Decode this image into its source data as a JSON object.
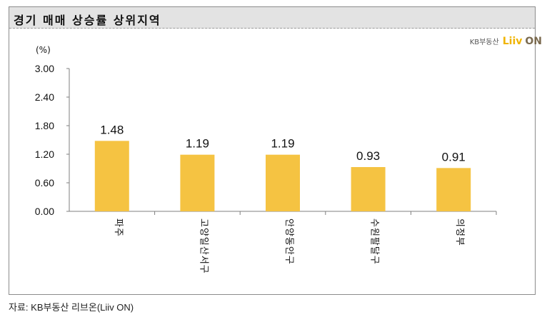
{
  "header": {
    "title": "경기 매매 상승률 상위지역"
  },
  "logo": {
    "kb_text": "KB부동산",
    "liiv_text": "Liiv",
    "on_text": "ON"
  },
  "footer": {
    "source": "자료: KB부동산 리브온(Liiv ON)"
  },
  "chart_data": {
    "type": "bar",
    "title": "경기 매매 상승률 상위지역",
    "ylabel": "(%)",
    "xlabel": "",
    "ylim": [
      0,
      3.0
    ],
    "yticks": [
      "0.00",
      "0.60",
      "1.20",
      "1.80",
      "2.40",
      "3.00"
    ],
    "categories": [
      "파주",
      "고양일산서구",
      "안양동안구",
      "수원팔달구",
      "의정부"
    ],
    "values": [
      1.48,
      1.19,
      1.19,
      0.93,
      0.91
    ],
    "data_labels": [
      "1.48",
      "1.19",
      "1.19",
      "0.93",
      "0.91"
    ],
    "bar_color": "#f5c342",
    "grid": false,
    "legend": "none"
  }
}
